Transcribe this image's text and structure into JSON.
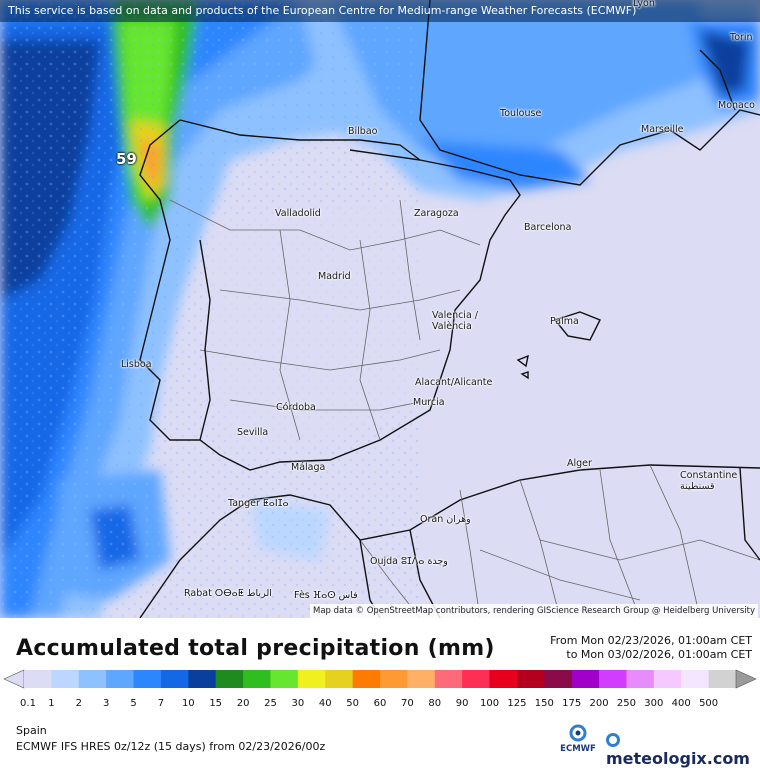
{
  "banner": "This service is based on data and products of the European Centre for Medium-range Weather Forecasts (ECMWF)",
  "attribution": "Map data © OpenStreetMap contributors, rendering GIScience Research Group @ Heidelberg University",
  "max_value": "59",
  "contour_label": "5",
  "cities": [
    {
      "name": "Lyon"
    },
    {
      "name": "Torin"
    },
    {
      "name": "Monaco"
    },
    {
      "name": "Toulouse"
    },
    {
      "name": "Marseille"
    },
    {
      "name": "Bilbao"
    },
    {
      "name": "Valladolid"
    },
    {
      "name": "Zaragoza"
    },
    {
      "name": "Barcelona"
    },
    {
      "name": "Madrid"
    },
    {
      "name": "Valencia / València"
    },
    {
      "name": "Palma"
    },
    {
      "name": "Lisboa"
    },
    {
      "name": "Alacant/Alicante"
    },
    {
      "name": "Murcia"
    },
    {
      "name": "Córdoba"
    },
    {
      "name": "Sevilla"
    },
    {
      "name": "Málaga"
    },
    {
      "name": "Alger"
    },
    {
      "name": "Constantine قسنطينة"
    },
    {
      "name": "Tanger ⵟⴰⵏⵊⴰ"
    },
    {
      "name": "Oran وهران"
    },
    {
      "name": "Oujda ⵓⵊⴷⴰ وجدة"
    },
    {
      "name": "Rabat ⵔⴱⴰⵟ الرباط"
    },
    {
      "name": "Fès ⴼⴰⵙ فاس"
    }
  ],
  "title": "Accumulated total precipitation (mm)",
  "date_from": "From Mon 02/23/2026, 01:00am CET",
  "date_to": "to Mon 03/02/2026, 01:00am CET",
  "legend": {
    "values": [
      "0.1",
      "1",
      "2",
      "3",
      "5",
      "7",
      "10",
      "15",
      "20",
      "25",
      "30",
      "40",
      "50",
      "60",
      "70",
      "80",
      "90",
      "100",
      "125",
      "150",
      "175",
      "200",
      "250",
      "300",
      "400",
      "500"
    ],
    "colors": [
      "#dcdcf4",
      "#bcd7ff",
      "#8ec1ff",
      "#5ea6ff",
      "#2e86ff",
      "#1468e6",
      "#0a3f9e",
      "#1f8a1f",
      "#2fbd1f",
      "#66e62e",
      "#f0f01e",
      "#e6d21e",
      "#ff7a00",
      "#ff9a33",
      "#ffb066",
      "#ff6a7a",
      "#ff2e55",
      "#e6001e",
      "#b4001e",
      "#8a0a4a",
      "#a000c8",
      "#d23cff",
      "#e68cff",
      "#f5c8ff",
      "#f5e6ff",
      "#d2d2d2"
    ]
  },
  "region": "Spain",
  "model": "ECMWF IFS HRES 0z/12z (15 days) from 02/23/2026/00z",
  "ecmwf_logo": "ECMWF",
  "brand": "meteologix.com"
}
